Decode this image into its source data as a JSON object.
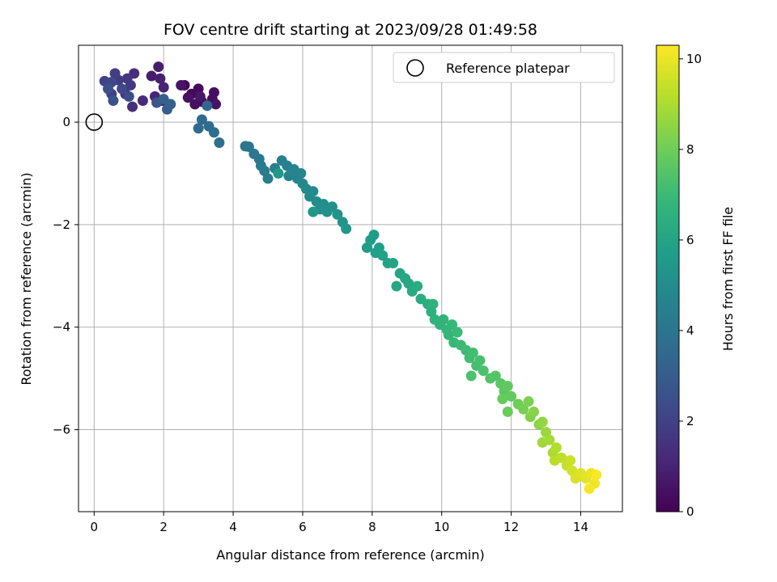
{
  "chart_data": {
    "type": "scatter",
    "title": "FOV centre drift starting at 2023/09/28 01:49:58",
    "xlabel": "Angular distance from reference (arcmin)",
    "ylabel": "Rotation from reference (arcmin)",
    "xlim": [
      -0.45,
      15.2
    ],
    "ylim": [
      -7.6,
      1.5
    ],
    "xticks": [
      0,
      2,
      4,
      6,
      8,
      10,
      12,
      14
    ],
    "yticks": [
      0,
      -2,
      -4,
      -6
    ],
    "grid": true,
    "legend": {
      "placement": "top-right",
      "label": "Reference platepar"
    },
    "reference_point": {
      "x": 0,
      "y": 0
    },
    "colorbar": {
      "label": "Hours from first FF file",
      "range": [
        0,
        10.3
      ],
      "ticks": [
        0,
        2,
        4,
        6,
        8,
        10
      ],
      "colormap": "viridis"
    },
    "points": [
      {
        "x": 2.6,
        "y": 0.72,
        "t": 0.1
      },
      {
        "x": 2.8,
        "y": 0.55,
        "t": 0.2
      },
      {
        "x": 3.0,
        "y": 0.65,
        "t": 0.25
      },
      {
        "x": 3.1,
        "y": 0.4,
        "t": 0.3
      },
      {
        "x": 3.4,
        "y": 0.45,
        "t": 0.35
      },
      {
        "x": 3.45,
        "y": 0.58,
        "t": 0.4
      },
      {
        "x": 2.9,
        "y": 0.35,
        "t": 0.45
      },
      {
        "x": 2.7,
        "y": 0.48,
        "t": 0.5
      },
      {
        "x": 3.5,
        "y": 0.35,
        "t": 0.55
      },
      {
        "x": 2.5,
        "y": 0.72,
        "t": 0.6
      },
      {
        "x": 3.05,
        "y": 0.5,
        "t": 0.65
      },
      {
        "x": 1.65,
        "y": 0.9,
        "t": 0.8
      },
      {
        "x": 1.85,
        "y": 1.08,
        "t": 0.85
      },
      {
        "x": 1.9,
        "y": 0.85,
        "t": 0.9
      },
      {
        "x": 2.0,
        "y": 0.68,
        "t": 1.0
      },
      {
        "x": 1.75,
        "y": 0.5,
        "t": 1.05
      },
      {
        "x": 1.95,
        "y": 0.42,
        "t": 1.1
      },
      {
        "x": 1.4,
        "y": 0.42,
        "t": 1.2
      },
      {
        "x": 1.15,
        "y": 0.95,
        "t": 1.3
      },
      {
        "x": 1.1,
        "y": 0.3,
        "t": 1.4
      },
      {
        "x": 0.9,
        "y": 0.55,
        "t": 1.5
      },
      {
        "x": 0.95,
        "y": 0.85,
        "t": 1.6
      },
      {
        "x": 1.05,
        "y": 0.72,
        "t": 1.7
      },
      {
        "x": 0.7,
        "y": 0.82,
        "t": 1.8
      },
      {
        "x": 0.6,
        "y": 0.95,
        "t": 1.9
      },
      {
        "x": 0.5,
        "y": 0.55,
        "t": 2.0
      },
      {
        "x": 0.3,
        "y": 0.8,
        "t": 2.1
      },
      {
        "x": 0.5,
        "y": 0.78,
        "t": 2.2
      },
      {
        "x": 0.8,
        "y": 0.65,
        "t": 2.3
      },
      {
        "x": 1.0,
        "y": 0.5,
        "t": 2.4
      },
      {
        "x": 0.4,
        "y": 0.65,
        "t": 2.5
      },
      {
        "x": 0.55,
        "y": 0.42,
        "t": 2.6
      },
      {
        "x": 1.8,
        "y": 0.38,
        "t": 2.8
      },
      {
        "x": 2.1,
        "y": 0.25,
        "t": 3.0
      },
      {
        "x": 2.0,
        "y": 0.45,
        "t": 3.1
      },
      {
        "x": 2.2,
        "y": 0.35,
        "t": 3.2
      },
      {
        "x": 3.25,
        "y": 0.32,
        "t": 3.4
      },
      {
        "x": 3.1,
        "y": 0.05,
        "t": 3.5
      },
      {
        "x": 3.0,
        "y": -0.12,
        "t": 3.55
      },
      {
        "x": 3.3,
        "y": -0.08,
        "t": 3.6
      },
      {
        "x": 3.45,
        "y": -0.2,
        "t": 3.7
      },
      {
        "x": 3.6,
        "y": -0.4,
        "t": 3.8
      },
      {
        "x": 4.35,
        "y": -0.47,
        "t": 4.0
      },
      {
        "x": 4.45,
        "y": -0.48,
        "t": 4.05
      },
      {
        "x": 4.6,
        "y": -0.62,
        "t": 4.1
      },
      {
        "x": 4.75,
        "y": -0.72,
        "t": 4.15
      },
      {
        "x": 4.8,
        "y": -0.85,
        "t": 4.2
      },
      {
        "x": 4.9,
        "y": -0.95,
        "t": 4.25
      },
      {
        "x": 5.0,
        "y": -1.1,
        "t": 4.3
      },
      {
        "x": 5.2,
        "y": -0.9,
        "t": 4.4
      },
      {
        "x": 5.4,
        "y": -0.75,
        "t": 4.5
      },
      {
        "x": 5.55,
        "y": -0.85,
        "t": 4.55
      },
      {
        "x": 5.6,
        "y": -1.05,
        "t": 4.6
      },
      {
        "x": 5.75,
        "y": -0.92,
        "t": 4.65
      },
      {
        "x": 5.85,
        "y": -1.1,
        "t": 4.7
      },
      {
        "x": 5.95,
        "y": -1.0,
        "t": 4.75
      },
      {
        "x": 6.0,
        "y": -1.2,
        "t": 4.8
      },
      {
        "x": 6.1,
        "y": -1.3,
        "t": 4.85
      },
      {
        "x": 6.2,
        "y": -1.45,
        "t": 4.9
      },
      {
        "x": 6.3,
        "y": -1.35,
        "t": 4.95
      },
      {
        "x": 6.4,
        "y": -1.55,
        "t": 5.0
      },
      {
        "x": 6.5,
        "y": -1.7,
        "t": 5.05
      },
      {
        "x": 6.6,
        "y": -1.6,
        "t": 5.1
      },
      {
        "x": 6.7,
        "y": -1.75,
        "t": 5.15
      },
      {
        "x": 6.85,
        "y": -1.65,
        "t": 5.2
      },
      {
        "x": 7.0,
        "y": -1.8,
        "t": 5.3
      },
      {
        "x": 7.15,
        "y": -1.95,
        "t": 5.35
      },
      {
        "x": 7.25,
        "y": -2.08,
        "t": 5.4
      },
      {
        "x": 6.3,
        "y": -1.75,
        "t": 5.45
      },
      {
        "x": 5.3,
        "y": -1.0,
        "t": 5.5
      },
      {
        "x": 7.85,
        "y": -2.45,
        "t": 5.6
      },
      {
        "x": 7.95,
        "y": -2.3,
        "t": 5.65
      },
      {
        "x": 8.05,
        "y": -2.2,
        "t": 5.7
      },
      {
        "x": 8.1,
        "y": -2.55,
        "t": 5.75
      },
      {
        "x": 8.2,
        "y": -2.45,
        "t": 5.8
      },
      {
        "x": 8.3,
        "y": -2.6,
        "t": 5.9
      },
      {
        "x": 8.45,
        "y": -2.75,
        "t": 5.95
      },
      {
        "x": 8.6,
        "y": -2.75,
        "t": 6.0
      },
      {
        "x": 8.8,
        "y": -2.95,
        "t": 6.05
      },
      {
        "x": 8.7,
        "y": -3.2,
        "t": 6.1
      },
      {
        "x": 8.95,
        "y": -3.05,
        "t": 6.15
      },
      {
        "x": 9.05,
        "y": -3.15,
        "t": 6.2
      },
      {
        "x": 9.15,
        "y": -3.3,
        "t": 6.25
      },
      {
        "x": 9.3,
        "y": -3.2,
        "t": 6.3
      },
      {
        "x": 9.4,
        "y": -3.45,
        "t": 6.35
      },
      {
        "x": 9.6,
        "y": -3.55,
        "t": 6.4
      },
      {
        "x": 9.7,
        "y": -3.7,
        "t": 6.5
      },
      {
        "x": 9.75,
        "y": -3.55,
        "t": 6.55
      },
      {
        "x": 9.8,
        "y": -3.85,
        "t": 6.6
      },
      {
        "x": 9.95,
        "y": -3.95,
        "t": 6.65
      },
      {
        "x": 10.05,
        "y": -3.85,
        "t": 6.7
      },
      {
        "x": 10.15,
        "y": -4.05,
        "t": 6.75
      },
      {
        "x": 10.2,
        "y": -4.15,
        "t": 6.8
      },
      {
        "x": 10.3,
        "y": -3.95,
        "t": 6.85
      },
      {
        "x": 10.35,
        "y": -4.3,
        "t": 6.9
      },
      {
        "x": 10.45,
        "y": -4.1,
        "t": 6.95
      },
      {
        "x": 10.55,
        "y": -4.35,
        "t": 7.0
      },
      {
        "x": 10.7,
        "y": -4.45,
        "t": 7.05
      },
      {
        "x": 10.8,
        "y": -4.6,
        "t": 7.1
      },
      {
        "x": 10.9,
        "y": -4.5,
        "t": 7.15
      },
      {
        "x": 11.0,
        "y": -4.75,
        "t": 7.2
      },
      {
        "x": 11.1,
        "y": -4.65,
        "t": 7.25
      },
      {
        "x": 11.2,
        "y": -4.85,
        "t": 7.3
      },
      {
        "x": 10.85,
        "y": -4.95,
        "t": 7.35
      },
      {
        "x": 11.4,
        "y": -5.0,
        "t": 7.45
      },
      {
        "x": 11.55,
        "y": -4.95,
        "t": 7.5
      },
      {
        "x": 11.7,
        "y": -5.1,
        "t": 7.6
      },
      {
        "x": 11.8,
        "y": -5.25,
        "t": 7.65
      },
      {
        "x": 11.9,
        "y": -5.15,
        "t": 7.7
      },
      {
        "x": 12.0,
        "y": -5.35,
        "t": 7.8
      },
      {
        "x": 11.75,
        "y": -5.4,
        "t": 7.85
      },
      {
        "x": 11.9,
        "y": -5.65,
        "t": 7.9
      },
      {
        "x": 12.2,
        "y": -5.5,
        "t": 8.0
      },
      {
        "x": 12.35,
        "y": -5.6,
        "t": 8.1
      },
      {
        "x": 12.5,
        "y": -5.45,
        "t": 8.2
      },
      {
        "x": 12.55,
        "y": -5.75,
        "t": 8.3
      },
      {
        "x": 12.65,
        "y": -5.65,
        "t": 8.4
      },
      {
        "x": 12.8,
        "y": -5.9,
        "t": 8.5
      },
      {
        "x": 12.9,
        "y": -5.85,
        "t": 8.6
      },
      {
        "x": 13.0,
        "y": -6.05,
        "t": 8.7
      },
      {
        "x": 12.9,
        "y": -6.25,
        "t": 8.8
      },
      {
        "x": 13.1,
        "y": -6.2,
        "t": 8.9
      },
      {
        "x": 13.2,
        "y": -6.45,
        "t": 9.0
      },
      {
        "x": 13.3,
        "y": -6.35,
        "t": 9.1
      },
      {
        "x": 13.25,
        "y": -6.6,
        "t": 9.2
      },
      {
        "x": 13.45,
        "y": -6.55,
        "t": 9.3
      },
      {
        "x": 13.6,
        "y": -6.7,
        "t": 9.4
      },
      {
        "x": 13.7,
        "y": -6.6,
        "t": 9.5
      },
      {
        "x": 13.75,
        "y": -6.8,
        "t": 9.6
      },
      {
        "x": 13.85,
        "y": -6.95,
        "t": 9.7
      },
      {
        "x": 14.0,
        "y": -6.85,
        "t": 9.8
      },
      {
        "x": 14.15,
        "y": -6.95,
        "t": 9.9
      },
      {
        "x": 14.3,
        "y": -6.85,
        "t": 10.0
      },
      {
        "x": 14.4,
        "y": -7.05,
        "t": 10.1
      },
      {
        "x": 14.25,
        "y": -7.15,
        "t": 10.2
      },
      {
        "x": 14.45,
        "y": -6.88,
        "t": 10.25
      }
    ]
  }
}
